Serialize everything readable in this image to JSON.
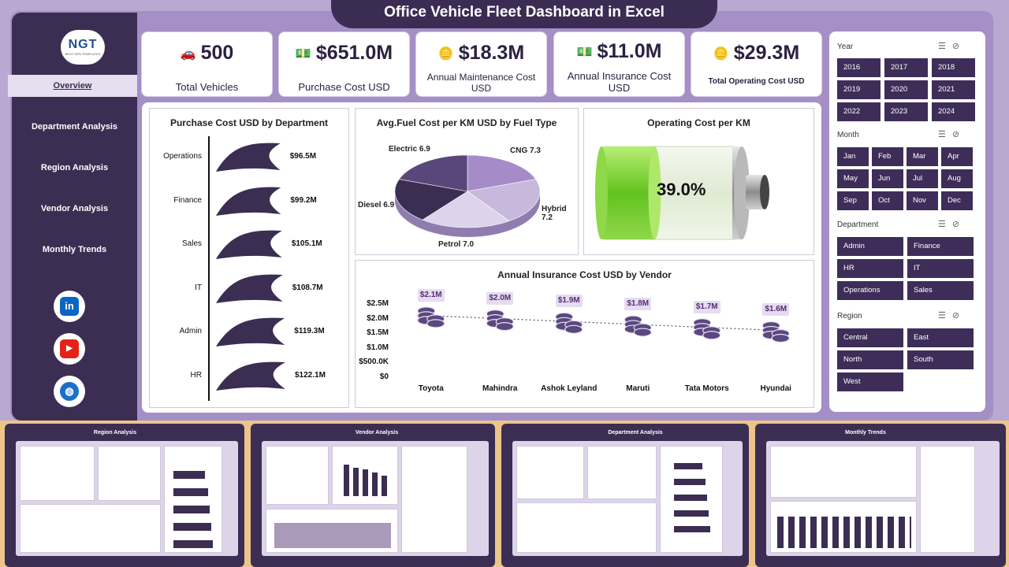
{
  "app": {
    "title": "Office Vehicle Fleet Dashboard in Excel"
  },
  "logo": {
    "text": "NGT",
    "subtitle": "NEXT GEN TEMPLATES"
  },
  "nav": {
    "items": [
      {
        "label": "Overview",
        "active": true
      },
      {
        "label": "Department Analysis",
        "active": false
      },
      {
        "label": "Region Analysis",
        "active": false
      },
      {
        "label": "Vendor Analysis",
        "active": false
      },
      {
        "label": "Monthly Trends",
        "active": false
      }
    ]
  },
  "social": [
    {
      "name": "linkedin-icon",
      "glyph": "in",
      "color": "#0a66c2"
    },
    {
      "name": "youtube-icon",
      "glyph": "▶",
      "color": "#e62117"
    },
    {
      "name": "globe-icon",
      "glyph": "◍",
      "color": "#1b6fc7"
    }
  ],
  "kpis": [
    {
      "value": "500",
      "label": "Total Vehicles",
      "icon": "car-icon"
    },
    {
      "value": "$651.0M",
      "label": "Purchase Cost USD",
      "icon": "cash-icon"
    },
    {
      "value": "$18.3M",
      "label": "Annual Maintenance Cost USD",
      "icon": "coins-icon"
    },
    {
      "value": "$11.0M",
      "label": "Annual Insurance Cost USD",
      "icon": "cash-icon"
    },
    {
      "value": "$29.3M",
      "label": "Total Operating Cost USD",
      "icon": "coins-icon"
    }
  ],
  "charts": {
    "purchase_by_dept": {
      "title": "Purchase Cost USD by Department"
    },
    "fuel_cost": {
      "title": "Avg.Fuel Cost per KM USD by Fuel Type"
    },
    "operating": {
      "title": "Operating Cost per KM",
      "value_label": "39.0%"
    },
    "insurance_vendor": {
      "title": "Annual Insurance Cost USD by Vendor"
    }
  },
  "chart_data": [
    {
      "type": "bar",
      "title": "Purchase Cost USD by Department",
      "categories": [
        "Operations",
        "Finance",
        "Sales",
        "IT",
        "Admin",
        "HR"
      ],
      "values": [
        96.5,
        99.2,
        105.1,
        108.7,
        119.3,
        122.1
      ],
      "labels": [
        "$96.5M",
        "$99.2M",
        "$105.1M",
        "$108.7M",
        "$119.3M",
        "$122.1M"
      ]
    },
    {
      "type": "pie",
      "title": "Avg.Fuel Cost per KM USD by Fuel Type",
      "categories": [
        "Electric",
        "CNG",
        "Hybrid",
        "Petrol",
        "Diesel"
      ],
      "values": [
        6.9,
        7.3,
        7.2,
        7.0,
        6.9
      ],
      "labels": [
        "Electric 6.9",
        "CNG 7.3",
        "Hybrid 7.2",
        "Petrol 7.0",
        "Diesel 6.9"
      ],
      "colors": [
        "#a58cc8",
        "#c7b8dc",
        "#ddd3ea",
        "#3c2d53",
        "#5a477a"
      ]
    },
    {
      "type": "gauge",
      "title": "Operating Cost per KM",
      "value": 39.0,
      "label": "39.0%"
    },
    {
      "type": "line",
      "title": "Annual Insurance Cost USD by Vendor",
      "categories": [
        "Toyota",
        "Mahindra",
        "Ashok Leyland",
        "Maruti",
        "Tata Motors",
        "Hyundai"
      ],
      "values": [
        2.1,
        2.0,
        1.9,
        1.8,
        1.7,
        1.6
      ],
      "labels": [
        "$2.1M",
        "$2.0M",
        "$1.9M",
        "$1.8M",
        "$1.7M",
        "$1.6M"
      ],
      "yticks": [
        "$2.5M",
        "$2.0M",
        "$1.5M",
        "$1.0M",
        "$500.0K",
        "$0"
      ],
      "ylim": [
        0,
        2.5
      ]
    }
  ],
  "slicers": [
    {
      "title": "Year",
      "items": [
        "2016",
        "2017",
        "2018",
        "2019",
        "2020",
        "2021",
        "2022",
        "2023",
        "2024"
      ],
      "cols": 3
    },
    {
      "title": "Month",
      "items": [
        "Jan",
        "Feb",
        "Mar",
        "Apr",
        "May",
        "Jun",
        "Jul",
        "Aug",
        "Sep",
        "Oct",
        "Nov",
        "Dec"
      ],
      "cols": 4
    },
    {
      "title": "Department",
      "items": [
        "Admin",
        "Finance",
        "HR",
        "IT",
        "Operations",
        "Sales"
      ],
      "cols": 2
    },
    {
      "title": "Region",
      "items": [
        "Central",
        "East",
        "North",
        "South",
        "West"
      ],
      "cols": 2
    }
  ],
  "thumbnails": [
    {
      "title": "Region Analysis"
    },
    {
      "title": "Vendor Analysis"
    },
    {
      "title": "Department Analysis"
    },
    {
      "title": "Monthly Trends"
    }
  ]
}
